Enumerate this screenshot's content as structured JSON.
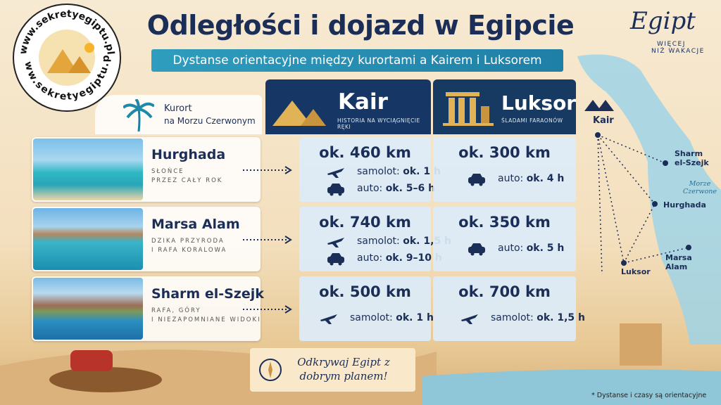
{
  "logo": {
    "url": "www.sekretyegiptu.pl"
  },
  "header": {
    "title": "Odległości i dojazd w Egipcie",
    "subtitle": "Dystanse orientacyjne między kurortami a Kairem i Luksorem"
  },
  "brand": {
    "name": "Egipt",
    "tagline": [
      "WIĘCEJ",
      "NIŻ WAKACJE"
    ]
  },
  "columns": {
    "resort": [
      "Kurort",
      "na Morzu Czerwonym"
    ],
    "kair": {
      "name": "Kair",
      "tagline": "HISTORIA NA WYCIĄGNIĘCIE RĘKI"
    },
    "luksor": {
      "name": "Luksor",
      "tagline": "ŚLADAMI FARAONÓW"
    }
  },
  "rows": [
    {
      "resort": "Hurghada",
      "description": [
        "SŁOŃCE",
        "PRZEZ CAŁY ROK"
      ],
      "kair": {
        "distance": "ok. 460 km",
        "travel": [
          {
            "mode": "samolot:",
            "time": "ok. 1 h"
          },
          {
            "mode": "auto:",
            "time": "ok. 5–6 h"
          }
        ]
      },
      "luksor": {
        "distance": "ok. 300 km",
        "travel": [
          {
            "mode": "auto:",
            "time": "ok. 4 h"
          }
        ]
      }
    },
    {
      "resort": "Marsa Alam",
      "description": [
        "DZIKA PRZYRODA",
        "I RAFA KORALOWA"
      ],
      "kair": {
        "distance": "ok. 740 km",
        "travel": [
          {
            "mode": "samolot:",
            "time": "ok. 1,5 h"
          },
          {
            "mode": "auto:",
            "time": "ok. 9–10 h"
          }
        ]
      },
      "luksor": {
        "distance": "ok. 350 km",
        "travel": [
          {
            "mode": "auto:",
            "time": "ok. 5 h"
          }
        ]
      }
    },
    {
      "resort": "Sharm el-Szejk",
      "description": [
        "RAFA, GÓRY",
        "I NIEZAPOMNIANE WIDOKI"
      ],
      "kair": {
        "distance": "ok. 500 km",
        "travel": [
          {
            "mode": "samolot:",
            "time": "ok. 1 h"
          }
        ]
      },
      "luksor": {
        "distance": "ok. 700 km",
        "travel": [
          {
            "mode": "samolot:",
            "time": "ok. 1,5 h"
          }
        ]
      }
    }
  ],
  "map": {
    "cities": [
      "Kair",
      "Sharm el-Szejk",
      "Hurghada",
      "Marsa Alam",
      "Luksor"
    ],
    "sea": "Morze Czerwone"
  },
  "footer": {
    "slogan": "Odkrywaj Egipt z dobrym planem!",
    "note": "* Dystanse i czasy są orientacyjne"
  }
}
